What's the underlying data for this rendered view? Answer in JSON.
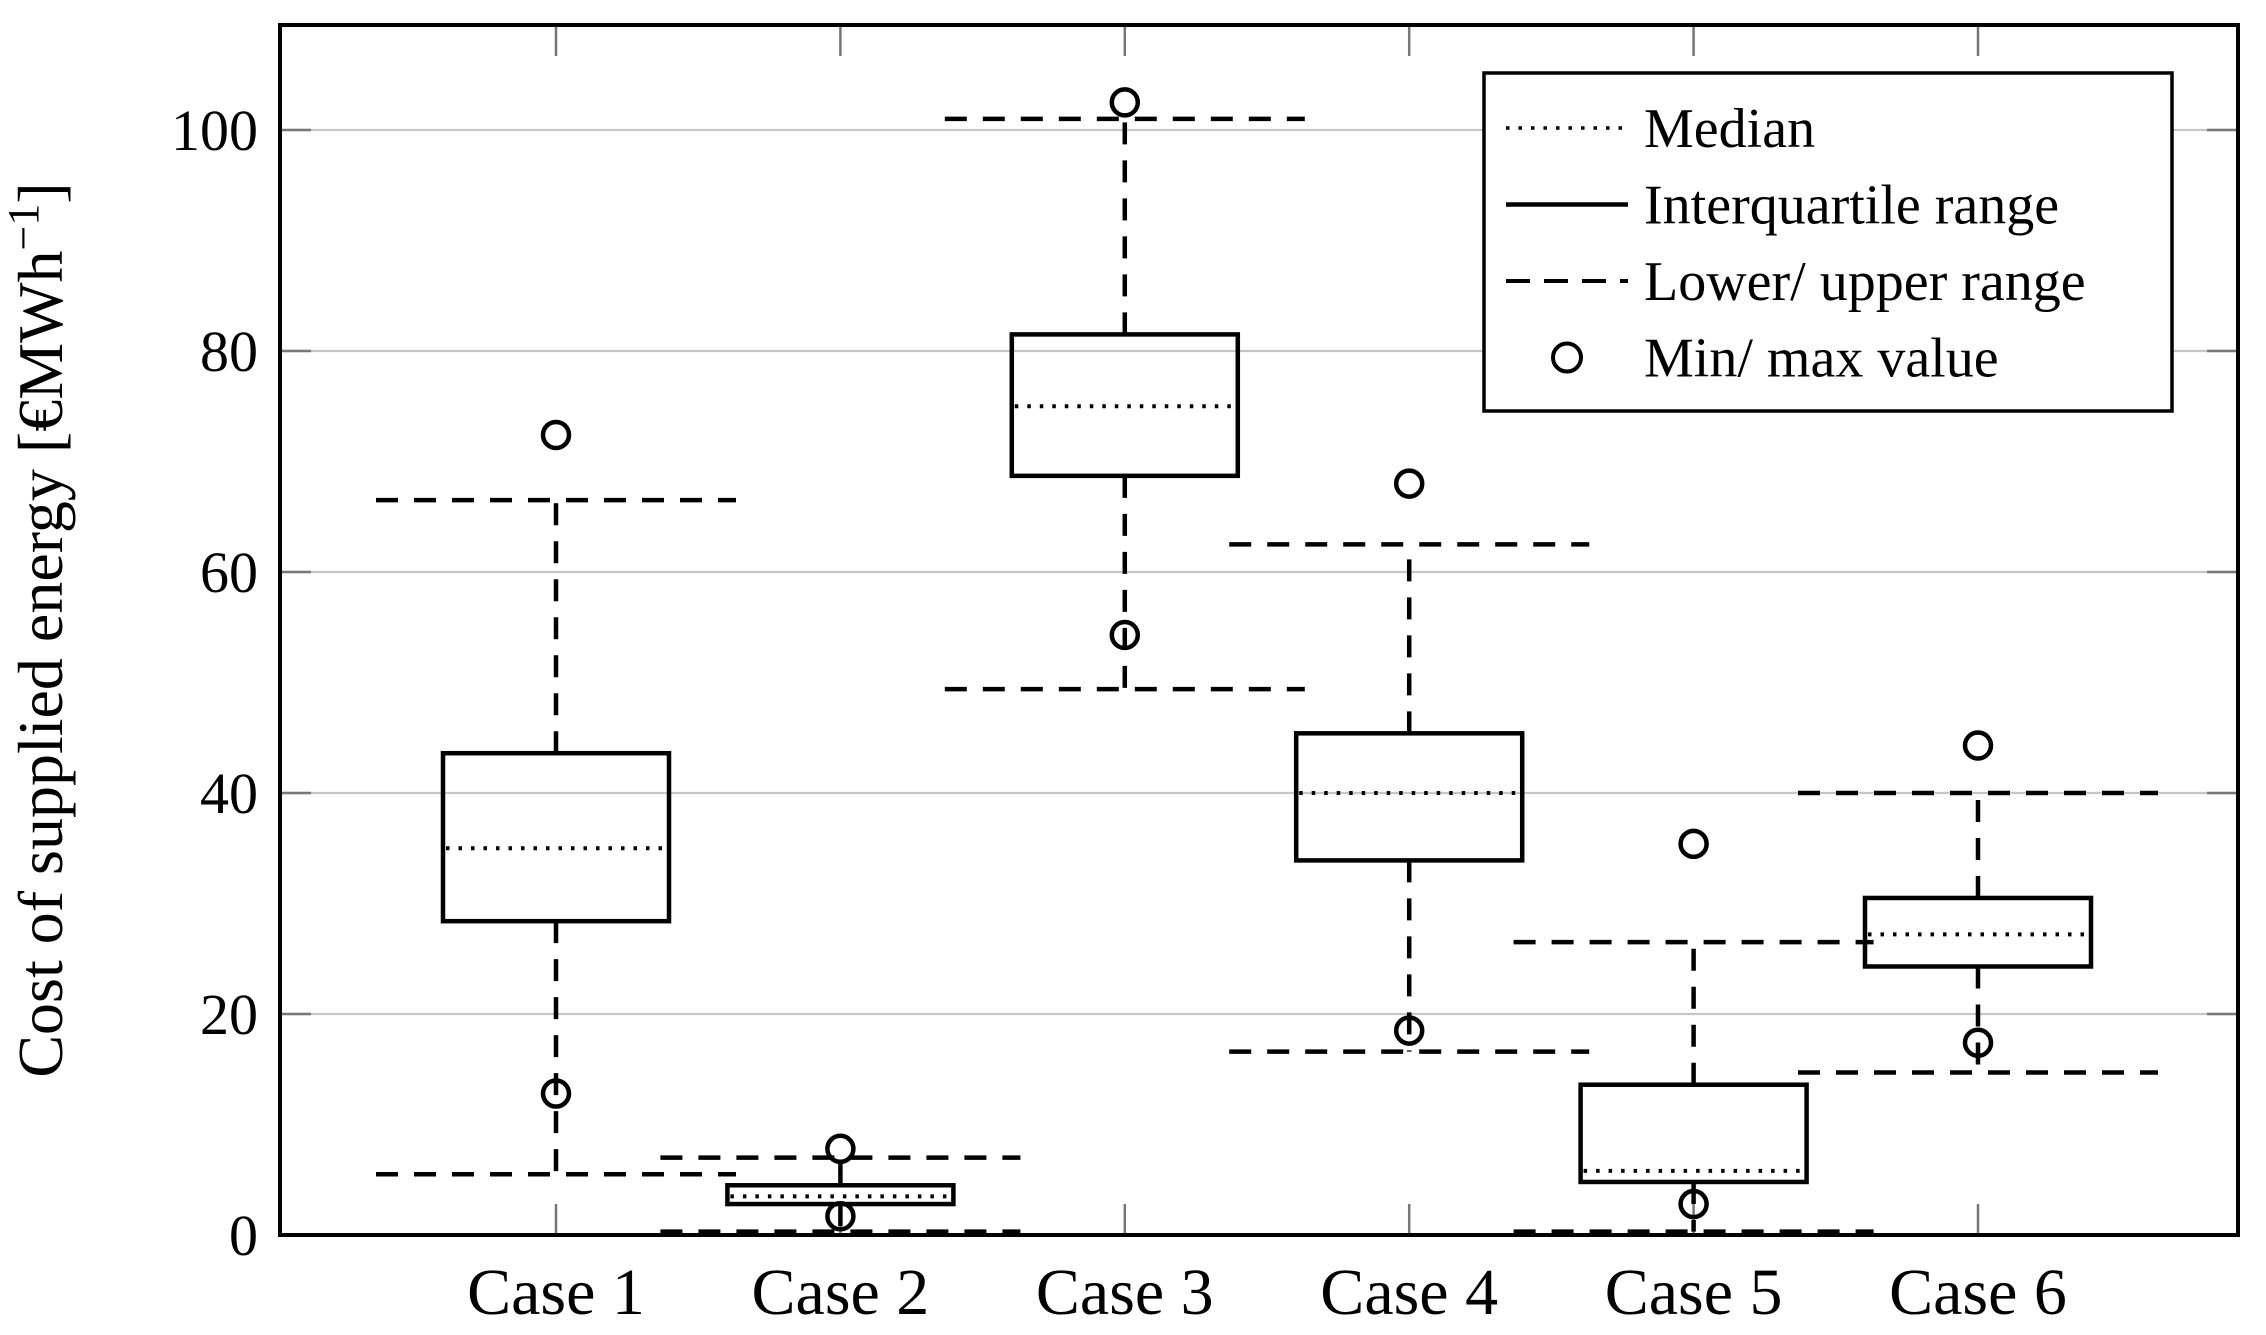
{
  "chart_data": {
    "type": "box",
    "title": "",
    "xlabel": "",
    "ylabel": "Cost of supplied energy [€MWh⁻¹]",
    "ylabel_parts": {
      "main": "Cost of supplied energy [€MWh",
      "sup": "−1",
      "close": "]"
    },
    "categories": [
      "Case 1",
      "Case 2",
      "Case 3",
      "Case 4",
      "Case 5",
      "Case 6"
    ],
    "yticks": [
      0,
      20,
      40,
      60,
      80,
      100
    ],
    "ytick_labels": [
      "0",
      "20",
      "40",
      "60",
      "80",
      "100"
    ],
    "ylim": [
      0,
      109.5
    ],
    "grid": "horizontal-gridlines-on",
    "legend_position": "top-right-inside",
    "boxes": [
      {
        "case": "Case 1",
        "min": 12.8,
        "lower": 5.5,
        "q1": 28.4,
        "median": 35.0,
        "q3": 43.6,
        "upper": 66.5,
        "max": 72.4
      },
      {
        "case": "Case 2",
        "min": 1.7,
        "lower": 0.3,
        "q1": 2.8,
        "median": 3.5,
        "q3": 4.5,
        "upper": 7.0,
        "max": 7.8
      },
      {
        "case": "Case 3",
        "min": 54.3,
        "lower": 49.4,
        "q1": 68.7,
        "median": 75.0,
        "q3": 81.5,
        "upper": 101.0,
        "max": 102.5
      },
      {
        "case": "Case 4",
        "min": 18.5,
        "lower": 16.6,
        "q1": 33.9,
        "median": 40.0,
        "q3": 45.4,
        "upper": 62.5,
        "max": 68.0
      },
      {
        "case": "Case 5",
        "min": 2.8,
        "lower": 0.3,
        "q1": 4.8,
        "median": 5.8,
        "q3": 13.6,
        "upper": 26.5,
        "max": 35.4
      },
      {
        "case": "Case 6",
        "min": 17.4,
        "lower": 14.7,
        "q1": 24.3,
        "median": 27.2,
        "q3": 30.5,
        "upper": 40.0,
        "max": 44.3
      }
    ],
    "legend": [
      {
        "symbol": "dotted-line",
        "label": "Median"
      },
      {
        "symbol": "solid-line",
        "label": "Interquartile range"
      },
      {
        "symbol": "dashed-line",
        "label": "Lower/ upper range"
      },
      {
        "symbol": "circle",
        "label": "Min/ max value"
      }
    ]
  },
  "colors": {
    "stroke": "#000000",
    "grid": "#c6c6c6",
    "tick": "#777777",
    "background": "#ffffff"
  }
}
